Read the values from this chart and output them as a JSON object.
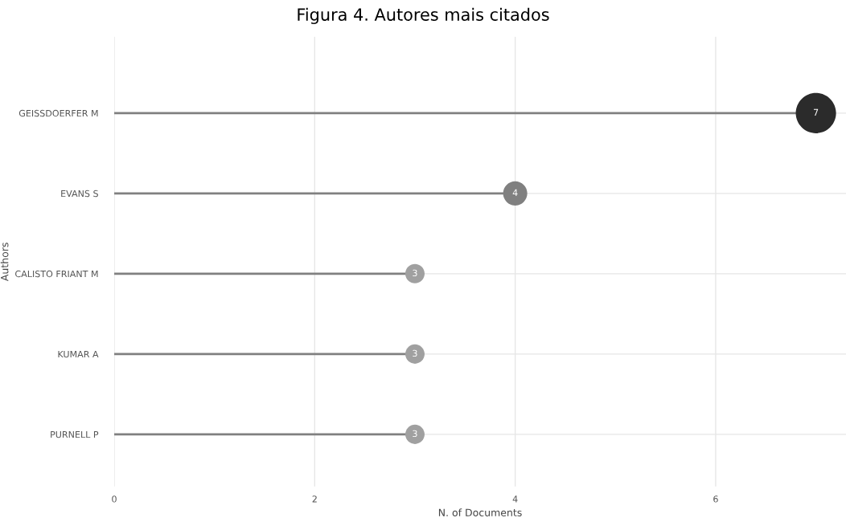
{
  "chart_data": {
    "type": "lollipop",
    "title": "Figura 4. Autores mais citados",
    "xlabel": "N. of Documents",
    "ylabel": "Authors",
    "orientation": "horizontal",
    "categories": [
      "GEISSDOERFER M",
      "EVANS S",
      "CALISTO FRIANT M",
      "KUMAR A",
      "PURNELL P"
    ],
    "values": [
      7,
      4,
      3,
      3,
      3
    ],
    "sizes": [
      1,
      0.36,
      0.23,
      0.23,
      0.23
    ],
    "colors": [
      "#2b2b2b",
      "#808080",
      "#a0a0a0",
      "#a0a0a0",
      "#a0a0a0"
    ],
    "xlim": [
      0,
      7.3
    ],
    "xticks": [
      0,
      2,
      4,
      6
    ],
    "grid": true,
    "data_labels": true,
    "marker": "circle"
  }
}
